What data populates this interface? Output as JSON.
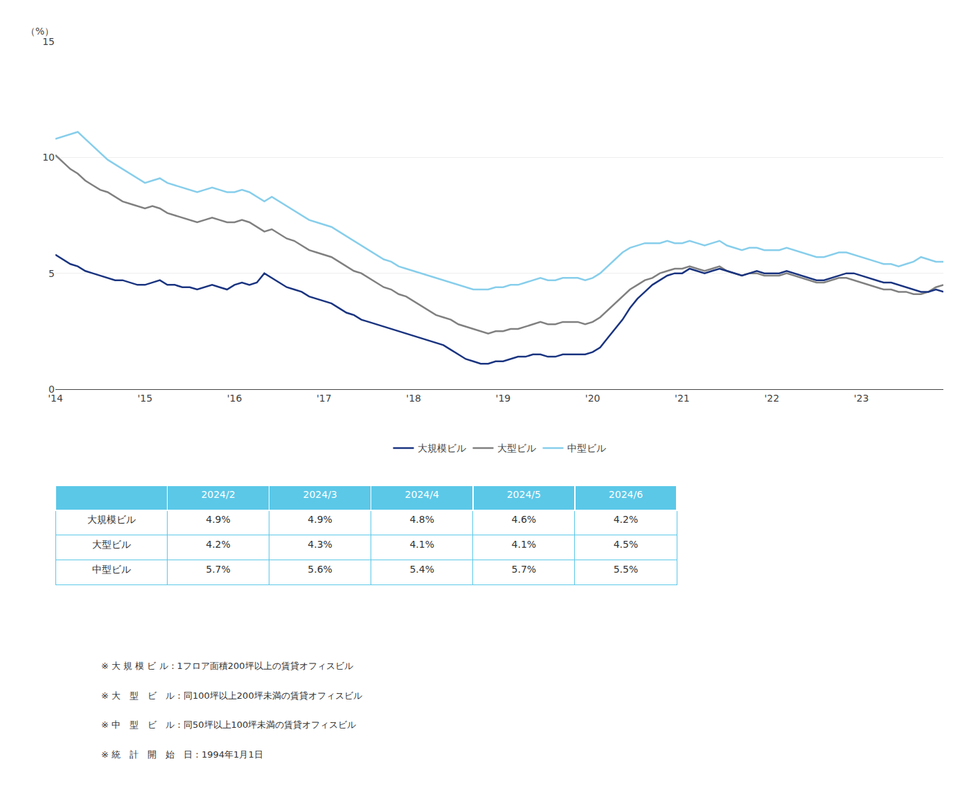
{
  "chart_data": {
    "type": "line",
    "y_label": "（%）",
    "categories": [
      "'14",
      null,
      null,
      null,
      null,
      null,
      null,
      null,
      null,
      null,
      null,
      null,
      "'15",
      null,
      null,
      null,
      null,
      null,
      null,
      null,
      null,
      null,
      null,
      null,
      "'16",
      null,
      null,
      null,
      null,
      null,
      null,
      null,
      null,
      null,
      null,
      null,
      "'17",
      null,
      null,
      null,
      null,
      null,
      null,
      null,
      null,
      null,
      null,
      null,
      "'18",
      null,
      null,
      null,
      null,
      null,
      null,
      null,
      null,
      null,
      null,
      null,
      "'19",
      null,
      null,
      null,
      null,
      null,
      null,
      null,
      null,
      null,
      null,
      null,
      "'20",
      null,
      null,
      null,
      null,
      null,
      null,
      null,
      null,
      null,
      null,
      null,
      "'21",
      null,
      null,
      null,
      null,
      null,
      null,
      null,
      null,
      null,
      null,
      null,
      "'22",
      null,
      null,
      null,
      null,
      null,
      null,
      null,
      null,
      null,
      null,
      null,
      "'23",
      null,
      null,
      null,
      null,
      null,
      null,
      null,
      null,
      null,
      null,
      null
    ],
    "series": [
      {
        "name": "大規模ビル",
        "color": "#1a3480",
        "values": [
          5.8,
          5.6,
          5.4,
          5.3,
          5.1,
          5.0,
          4.9,
          4.8,
          4.7,
          4.7,
          4.6,
          4.5,
          4.5,
          4.6,
          4.7,
          4.5,
          4.5,
          4.4,
          4.4,
          4.3,
          4.4,
          4.5,
          4.4,
          4.3,
          4.5,
          4.6,
          4.5,
          4.6,
          5.0,
          4.8,
          4.6,
          4.4,
          4.3,
          4.2,
          4.0,
          3.9,
          3.8,
          3.7,
          3.5,
          3.3,
          3.2,
          3.0,
          2.9,
          2.8,
          2.7,
          2.6,
          2.5,
          2.4,
          2.3,
          2.2,
          2.1,
          2.0,
          1.9,
          1.7,
          1.5,
          1.3,
          1.2,
          1.1,
          1.1,
          1.2,
          1.2,
          1.3,
          1.4,
          1.4,
          1.5,
          1.5,
          1.4,
          1.4,
          1.5,
          1.5,
          1.5,
          1.5,
          1.6,
          1.8,
          2.2,
          2.6,
          3.0,
          3.5,
          3.9,
          4.2,
          4.5,
          4.7,
          4.9,
          5.0,
          5.0,
          5.2,
          5.1,
          5.0,
          5.1,
          5.2,
          5.1,
          5.0,
          4.9,
          5.0,
          5.1,
          5.0,
          5.0,
          5.0,
          5.1,
          5.0,
          4.9,
          4.8,
          4.7,
          4.7,
          4.8,
          4.9,
          5.0,
          5.0,
          4.9,
          4.8,
          4.7,
          4.6,
          4.6,
          4.5,
          4.4,
          4.3,
          4.2,
          4.2,
          4.3,
          4.2
        ]
      },
      {
        "name": "大型ビル",
        "color": "#808080",
        "values": [
          10.1,
          9.8,
          9.5,
          9.3,
          9.0,
          8.8,
          8.6,
          8.5,
          8.3,
          8.1,
          8.0,
          7.9,
          7.8,
          7.9,
          7.8,
          7.6,
          7.5,
          7.4,
          7.3,
          7.2,
          7.3,
          7.4,
          7.3,
          7.2,
          7.2,
          7.3,
          7.2,
          7.0,
          6.8,
          6.9,
          6.7,
          6.5,
          6.4,
          6.2,
          6.0,
          5.9,
          5.8,
          5.7,
          5.5,
          5.3,
          5.1,
          5.0,
          4.8,
          4.6,
          4.4,
          4.3,
          4.1,
          4.0,
          3.8,
          3.6,
          3.4,
          3.2,
          3.1,
          3.0,
          2.8,
          2.7,
          2.6,
          2.5,
          2.4,
          2.5,
          2.5,
          2.6,
          2.6,
          2.7,
          2.8,
          2.9,
          2.8,
          2.8,
          2.9,
          2.9,
          2.9,
          2.8,
          2.9,
          3.1,
          3.4,
          3.7,
          4.0,
          4.3,
          4.5,
          4.7,
          4.8,
          5.0,
          5.1,
          5.2,
          5.2,
          5.3,
          5.2,
          5.1,
          5.2,
          5.3,
          5.1,
          5.0,
          4.9,
          5.0,
          5.0,
          4.9,
          4.9,
          4.9,
          5.0,
          4.9,
          4.8,
          4.7,
          4.6,
          4.6,
          4.7,
          4.8,
          4.8,
          4.7,
          4.6,
          4.5,
          4.4,
          4.3,
          4.3,
          4.2,
          4.2,
          4.1,
          4.1,
          4.2,
          4.4,
          4.5
        ]
      },
      {
        "name": "中型ビル",
        "color": "#87ceeb",
        "values": [
          10.8,
          10.9,
          11.0,
          11.1,
          10.8,
          10.5,
          10.2,
          9.9,
          9.7,
          9.5,
          9.3,
          9.1,
          8.9,
          9.0,
          9.1,
          8.9,
          8.8,
          8.7,
          8.6,
          8.5,
          8.6,
          8.7,
          8.6,
          8.5,
          8.5,
          8.6,
          8.5,
          8.3,
          8.1,
          8.3,
          8.1,
          7.9,
          7.7,
          7.5,
          7.3,
          7.2,
          7.1,
          7.0,
          6.8,
          6.6,
          6.4,
          6.2,
          6.0,
          5.8,
          5.6,
          5.5,
          5.3,
          5.2,
          5.1,
          5.0,
          4.9,
          4.8,
          4.7,
          4.6,
          4.5,
          4.4,
          4.3,
          4.3,
          4.3,
          4.4,
          4.4,
          4.5,
          4.5,
          4.6,
          4.7,
          4.8,
          4.7,
          4.7,
          4.8,
          4.8,
          4.8,
          4.7,
          4.8,
          5.0,
          5.3,
          5.6,
          5.9,
          6.1,
          6.2,
          6.3,
          6.3,
          6.3,
          6.4,
          6.3,
          6.3,
          6.4,
          6.3,
          6.2,
          6.3,
          6.4,
          6.2,
          6.1,
          6.0,
          6.1,
          6.1,
          6.0,
          6.0,
          6.0,
          6.1,
          6.0,
          5.9,
          5.8,
          5.7,
          5.7,
          5.8,
          5.9,
          5.9,
          5.8,
          5.7,
          5.6,
          5.5,
          5.4,
          5.4,
          5.3,
          5.4,
          5.5,
          5.7,
          5.6,
          5.5,
          5.5
        ]
      }
    ],
    "ylim": [
      0,
      15
    ],
    "yticks": [
      0,
      5,
      10,
      15
    ],
    "grid": true,
    "legend": "bottom",
    "table": {
      "color": "#5bc8e8",
      "columns": [
        "2024/2",
        "2024/3",
        "2024/4",
        "2024/5",
        "2024/6"
      ],
      "rows": [
        {
          "name": "大規模ビル",
          "values": [
            "4.9%",
            "4.9%",
            "4.8%",
            "4.6%",
            "4.2%"
          ]
        },
        {
          "name": "大型ビル",
          "values": [
            "4.2%",
            "4.3%",
            "4.1%",
            "4.1%",
            "4.5%"
          ]
        },
        {
          "name": "中型ビル",
          "values": [
            "5.7%",
            "5.6%",
            "5.4%",
            "5.7%",
            "5.5%"
          ]
        }
      ]
    },
    "notes": [
      "※ 大 規 模 ビ ル：1フロア面積200坪以上の賃貸オフィスビル",
      "※ 大　型　ビ　ル：同100坪以上200坪未満の賃貸オフィスビル",
      "※ 中　型　ビ　ル：同50坪以上100坪未満の賃貸オフィスビル",
      "※ 統　計　開　始　日：1994年1月1日"
    ]
  }
}
